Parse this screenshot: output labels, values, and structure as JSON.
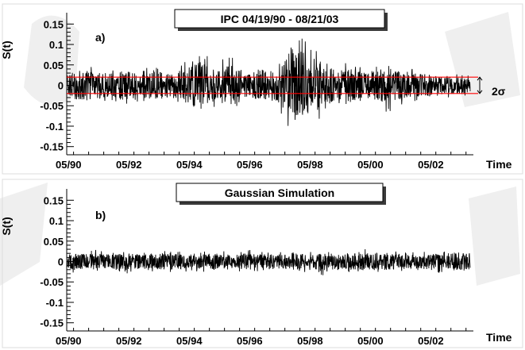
{
  "chart_data": [
    {
      "type": "line",
      "panel_label": "a)",
      "title": "IPC  04/19/90 - 08/21/03",
      "ylabel": "S(t)",
      "xlabel": "Time",
      "x_tick_labels": [
        "05/90",
        "05/92",
        "05/94",
        "05/96",
        "05/98",
        "05/00",
        "05/02"
      ],
      "y_tick_labels": [
        "0.15",
        "0.1",
        "0.05",
        "0",
        "-0.05",
        "-0.1",
        "-0.15"
      ],
      "y_ticks": [
        0.15,
        0.1,
        0.05,
        0,
        -0.05,
        -0.1,
        -0.15
      ],
      "ylim": [
        -0.17,
        0.17
      ],
      "x_range": [
        "04/19/90",
        "08/21/03"
      ],
      "line_color": "#000000",
      "band": {
        "label": "2σ",
        "values": [
          0.02,
          -0.02
        ],
        "color": "#ff0000"
      },
      "series": [
        {
          "x": [
            "04/90",
            "10/90",
            "04/91",
            "10/91",
            "04/92",
            "10/92",
            "04/93",
            "10/93",
            "04/94",
            "10/94",
            "04/95",
            "10/95",
            "04/96",
            "10/96",
            "04/97",
            "10/97",
            "04/98",
            "10/98",
            "04/99",
            "10/99",
            "04/00",
            "10/00",
            "04/01",
            "10/01",
            "04/02",
            "10/02",
            "04/03",
            "08/03"
          ],
          "max": [
            0.04,
            0.06,
            0.05,
            0.04,
            0.05,
            0.04,
            0.05,
            0.04,
            0.06,
            0.1,
            0.05,
            0.09,
            0.04,
            0.06,
            0.05,
            0.12,
            0.12,
            0.07,
            0.05,
            0.06,
            0.04,
            0.05,
            0.05,
            0.04,
            0.04,
            0.03,
            0.03,
            0.025
          ],
          "min": [
            -0.04,
            -0.05,
            -0.04,
            -0.04,
            -0.05,
            -0.04,
            -0.05,
            -0.04,
            -0.06,
            -0.07,
            -0.05,
            -0.06,
            -0.04,
            -0.05,
            -0.06,
            -0.14,
            -0.1,
            -0.08,
            -0.05,
            -0.06,
            -0.05,
            -0.08,
            -0.05,
            -0.04,
            -0.04,
            -0.03,
            -0.03,
            -0.025
          ]
        }
      ]
    },
    {
      "type": "line",
      "panel_label": "b)",
      "title": "Gaussian Simulation",
      "ylabel": "S(t)",
      "xlabel": "Time",
      "x_tick_labels": [
        "05/90",
        "05/92",
        "05/94",
        "05/96",
        "05/98",
        "05/00",
        "05/02"
      ],
      "y_tick_labels": [
        "0.15",
        "0.1",
        "0.05",
        "0",
        "-0.05",
        "-0.1",
        "-0.15"
      ],
      "y_ticks": [
        0.15,
        0.1,
        0.05,
        0,
        -0.05,
        -0.1,
        -0.15
      ],
      "ylim": [
        -0.17,
        0.17
      ],
      "x_range": [
        "04/19/90",
        "08/21/03"
      ],
      "line_color": "#000000",
      "series": [
        {
          "x": [
            "04/90",
            "10/90",
            "04/91",
            "10/91",
            "04/92",
            "10/92",
            "04/93",
            "10/93",
            "04/94",
            "10/94",
            "04/95",
            "10/95",
            "04/96",
            "10/96",
            "04/97",
            "10/97",
            "04/98",
            "10/98",
            "04/99",
            "10/99",
            "04/00",
            "10/00",
            "04/01",
            "10/01",
            "04/02",
            "10/02",
            "04/03",
            "08/03"
          ],
          "max": [
            0.025,
            0.025,
            0.03,
            0.025,
            0.025,
            0.025,
            0.03,
            0.025,
            0.025,
            0.03,
            0.025,
            0.025,
            0.03,
            0.025,
            0.025,
            0.03,
            0.025,
            0.03,
            0.03,
            0.025,
            0.035,
            0.03,
            0.025,
            0.025,
            0.03,
            0.025,
            0.03,
            0.025
          ],
          "min": [
            -0.025,
            -0.03,
            -0.025,
            -0.025,
            -0.03,
            -0.025,
            -0.025,
            -0.03,
            -0.025,
            -0.025,
            -0.03,
            -0.025,
            -0.03,
            -0.025,
            -0.025,
            -0.03,
            -0.025,
            -0.035,
            -0.025,
            -0.03,
            -0.025,
            -0.03,
            -0.03,
            -0.025,
            -0.025,
            -0.03,
            -0.035,
            -0.03
          ]
        }
      ]
    }
  ]
}
